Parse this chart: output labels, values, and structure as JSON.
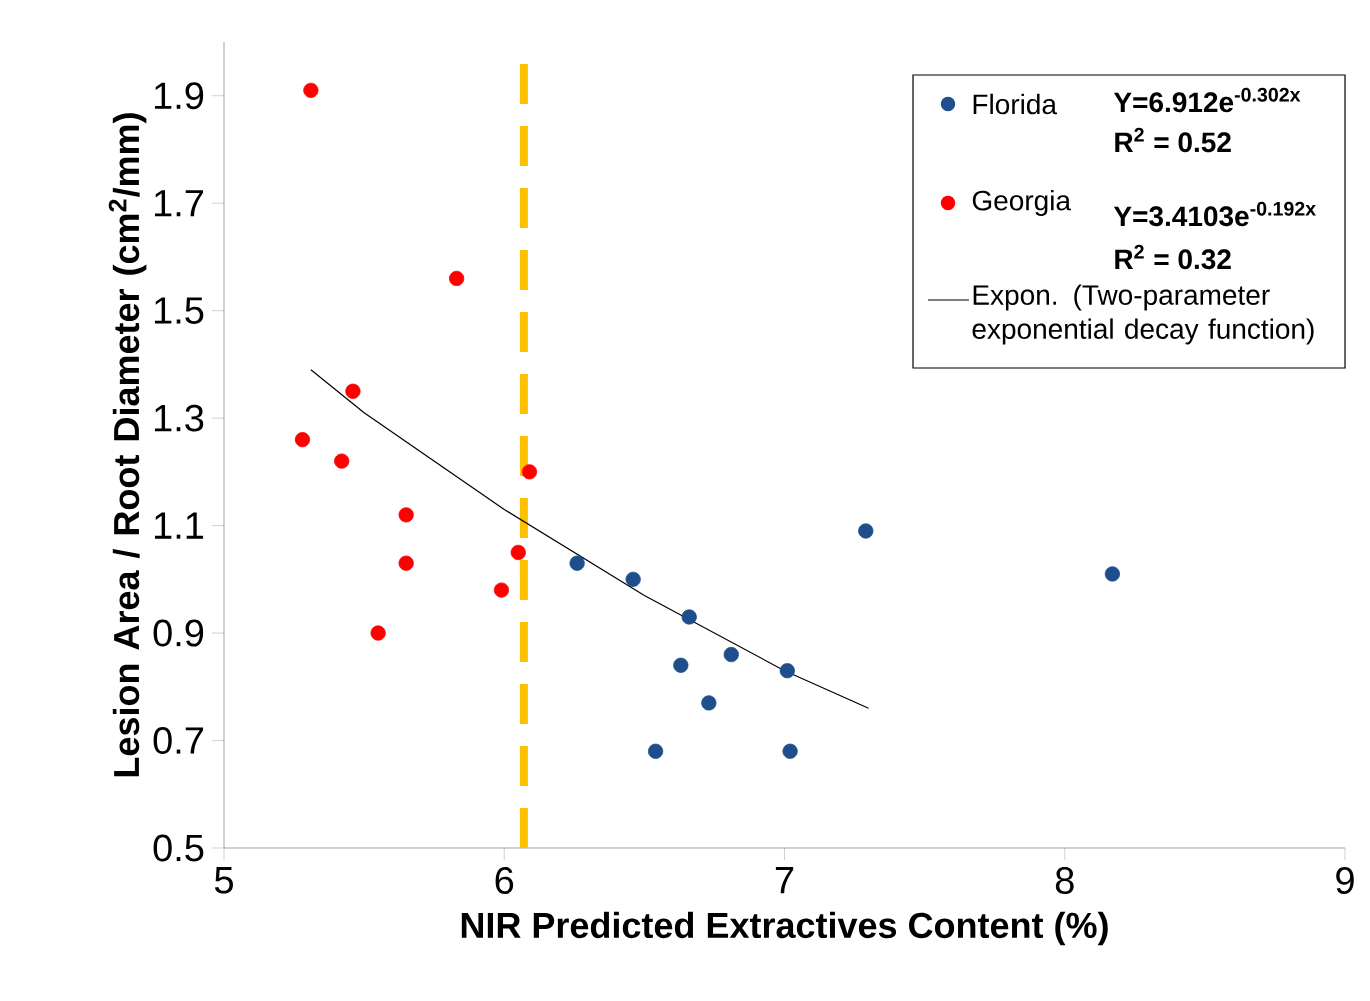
{
  "chart_data": {
    "type": "scatter",
    "xlabel": "NIR Predicted Extractives Content (%)",
    "ylabel": "Lesion Area / Root Diameter (cm$^{2}$/mm)",
    "xlim": [
      5,
      9
    ],
    "xticks": [
      5,
      6,
      7,
      8,
      9
    ],
    "ylim": [
      0.5,
      2.0
    ],
    "yticks": [
      0.5,
      0.7,
      0.9,
      1.1,
      1.3,
      1.5,
      1.7,
      1.9
    ],
    "legend": "top right",
    "series": [
      {
        "name": "Florida",
        "color": "#1f4e8c",
        "marker": "circle",
        "x": [
          6.26,
          6.46,
          6.66,
          6.63,
          6.81,
          7.01,
          6.73,
          6.54,
          7.02,
          7.29,
          8.17
        ],
        "values": [
          1.03,
          1.0,
          0.93,
          0.84,
          0.86,
          0.83,
          0.77,
          0.68,
          0.68,
          1.09,
          1.01
        ]
      },
      {
        "name": "Georgia",
        "color": "#ff0000",
        "marker": "circle",
        "x": [
          5.31,
          5.83,
          5.46,
          5.28,
          5.42,
          6.09,
          5.65,
          5.65,
          6.05,
          5.99,
          5.55
        ],
        "values": [
          1.91,
          1.56,
          1.35,
          1.26,
          1.22,
          1.2,
          1.12,
          1.03,
          1.05,
          0.98,
          0.9
        ]
      },
      {
        "name": "Expon. (Two-parameter exponential decay function)",
        "type": "line",
        "marker": "none",
        "color": "#000000",
        "x": [
          5.31,
          5.5,
          6,
          6.5,
          7,
          7.3
        ],
        "values": [
          1.39,
          1.31,
          1.13,
          0.97,
          0.83,
          0.76
        ]
      }
    ],
    "annotations": [
      "Y=6.912e$^{-0.302x}$",
      "R$^{2}$ = 0.52",
      "Y=3.4103e$^{-0.192x}$",
      "R$^{2}$ = 0.32"
    ],
    "ref_lines": [
      {
        "axis": "x",
        "value": 6.07,
        "color": "#ffc000",
        "line_style": "dashed"
      }
    ]
  }
}
